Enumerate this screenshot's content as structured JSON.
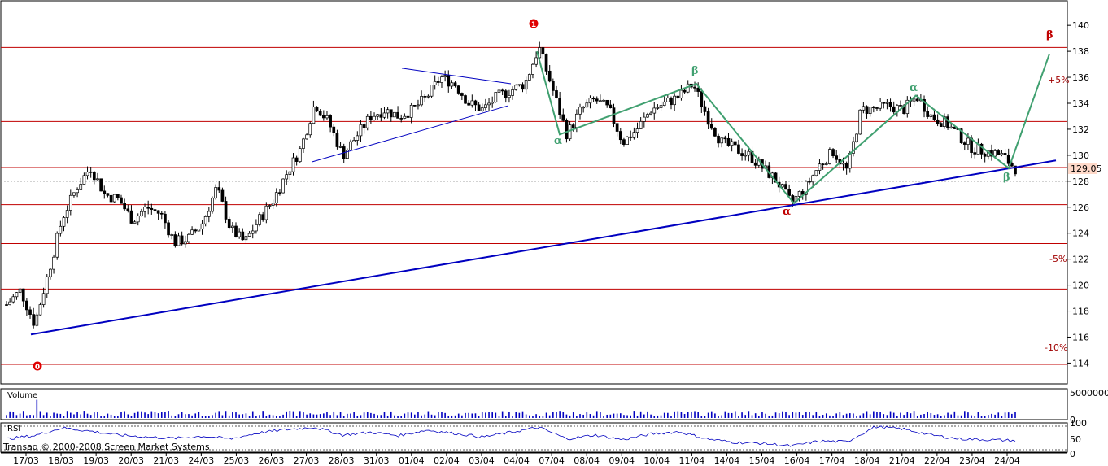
{
  "chart_data": {
    "type": "candlestick",
    "price_axis": {
      "range": [
        113.4,
        141.2
      ],
      "ticks": [
        "140",
        "138",
        "136",
        "134",
        "132",
        "130",
        "128",
        "126",
        "124",
        "122",
        "120",
        "118",
        "116",
        "114"
      ],
      "last_price": "129.05"
    },
    "horizontal_levels": [
      138.3,
      132.6,
      129.05,
      126.2,
      123.2,
      119.7,
      113.9
    ],
    "dotted_levels": [
      128.0
    ],
    "x_ticks": [
      "17/03",
      "18/03",
      "19/03",
      "20/03",
      "21/03",
      "24/03",
      "25/03",
      "26/03",
      "27/03",
      "28/03",
      "31/03",
      "01/04",
      "02/04",
      "03/04",
      "04/04",
      "07/04",
      "08/04",
      "09/04",
      "10/04",
      "11/04",
      "14/04",
      "15/04",
      "16/04",
      "17/04",
      "18/04",
      "21/04",
      "22/04",
      "23/04",
      "24/04"
    ],
    "price_path": [
      [
        0,
        118.5
      ],
      [
        1,
        119.6
      ],
      [
        2,
        117.0
      ],
      [
        3,
        121.0
      ],
      [
        4,
        125.2
      ],
      [
        5,
        127.5
      ],
      [
        6,
        129.1
      ],
      [
        7,
        127.0
      ],
      [
        8,
        126.6
      ],
      [
        9,
        125.0
      ],
      [
        10,
        126.0
      ],
      [
        11,
        125.5
      ],
      [
        12,
        123.3
      ],
      [
        13,
        123.6
      ],
      [
        14,
        124.8
      ],
      [
        15,
        127.5
      ],
      [
        16,
        124.3
      ],
      [
        17,
        123.3
      ],
      [
        18,
        125.0
      ],
      [
        19,
        126.5
      ],
      [
        20,
        128.6
      ],
      [
        21,
        130.5
      ],
      [
        22,
        134.0
      ],
      [
        23,
        132.5
      ],
      [
        24,
        130.0
      ],
      [
        25,
        131.5
      ],
      [
        26,
        133.0
      ],
      [
        27,
        133.5
      ],
      [
        28,
        133.0
      ],
      [
        29,
        133.5
      ],
      [
        30,
        134.5
      ],
      [
        31,
        136.0
      ],
      [
        32,
        135.5
      ],
      [
        33,
        134.0
      ],
      [
        34,
        133.5
      ],
      [
        35,
        134.5
      ],
      [
        36,
        135.0
      ],
      [
        37,
        135.5
      ],
      [
        38,
        138.3
      ],
      [
        39,
        135.0
      ],
      [
        40,
        131.6
      ],
      [
        41,
        133.5
      ],
      [
        42,
        134.3
      ],
      [
        43,
        133.5
      ],
      [
        44,
        131.0
      ],
      [
        45,
        132.0
      ],
      [
        46,
        133.5
      ],
      [
        47,
        134.0
      ],
      [
        48,
        134.5
      ],
      [
        49,
        135.5
      ],
      [
        50,
        133.0
      ],
      [
        51,
        131.0
      ],
      [
        52,
        130.5
      ],
      [
        53,
        130.0
      ],
      [
        54,
        129.0
      ],
      [
        55,
        128.0
      ],
      [
        56,
        126.3
      ],
      [
        57,
        127.5
      ],
      [
        58,
        129.2
      ],
      [
        59,
        130.3
      ],
      [
        60,
        128.8
      ],
      [
        61,
        133.5
      ],
      [
        62,
        133.6
      ],
      [
        63,
        133.8
      ],
      [
        64,
        133.5
      ],
      [
        65,
        134.5
      ],
      [
        66,
        133.0
      ],
      [
        67,
        132.5
      ],
      [
        68,
        131.5
      ],
      [
        69,
        130.5
      ],
      [
        70,
        130.3
      ],
      [
        71,
        130.0
      ],
      [
        72,
        129.0
      ]
    ],
    "volume_axis": {
      "ticks": [
        "5000000",
        "0"
      ]
    },
    "rsi_axis": {
      "ticks": [
        "100",
        "50",
        "0"
      ]
    },
    "rsi_path": [
      [
        0,
        48
      ],
      [
        2,
        60
      ],
      [
        4,
        88
      ],
      [
        6,
        76
      ],
      [
        8,
        62
      ],
      [
        10,
        55
      ],
      [
        12,
        50
      ],
      [
        14,
        58
      ],
      [
        16,
        48
      ],
      [
        18,
        70
      ],
      [
        20,
        82
      ],
      [
        22,
        90
      ],
      [
        24,
        62
      ],
      [
        26,
        72
      ],
      [
        28,
        60
      ],
      [
        30,
        80
      ],
      [
        32,
        68
      ],
      [
        34,
        55
      ],
      [
        36,
        72
      ],
      [
        38,
        90
      ],
      [
        40,
        48
      ],
      [
        42,
        62
      ],
      [
        44,
        45
      ],
      [
        46,
        66
      ],
      [
        48,
        74
      ],
      [
        50,
        48
      ],
      [
        52,
        35
      ],
      [
        54,
        32
      ],
      [
        56,
        22
      ],
      [
        58,
        40
      ],
      [
        60,
        38
      ],
      [
        62,
        92
      ],
      [
        64,
        84
      ],
      [
        66,
        62
      ],
      [
        68,
        48
      ],
      [
        70,
        45
      ],
      [
        72,
        42
      ]
    ]
  },
  "annotations": {
    "wave_0": "0",
    "wave_1": "1",
    "alpha": "α",
    "beta": "β",
    "plus5": "+5%",
    "minus5": "-5%",
    "minus10": "-10%"
  },
  "panels": {
    "volume_label": "Volume",
    "rsi_label": "RSI",
    "copyright": "Transaq © 2000-2008 Screen Market Systems"
  },
  "colors": {
    "red_level": "#c00000",
    "trend": "#0000c0",
    "wave": "#40a070",
    "wave_marker": "#e00000",
    "rsi": "#0000c0",
    "volume": "#0000c0"
  }
}
